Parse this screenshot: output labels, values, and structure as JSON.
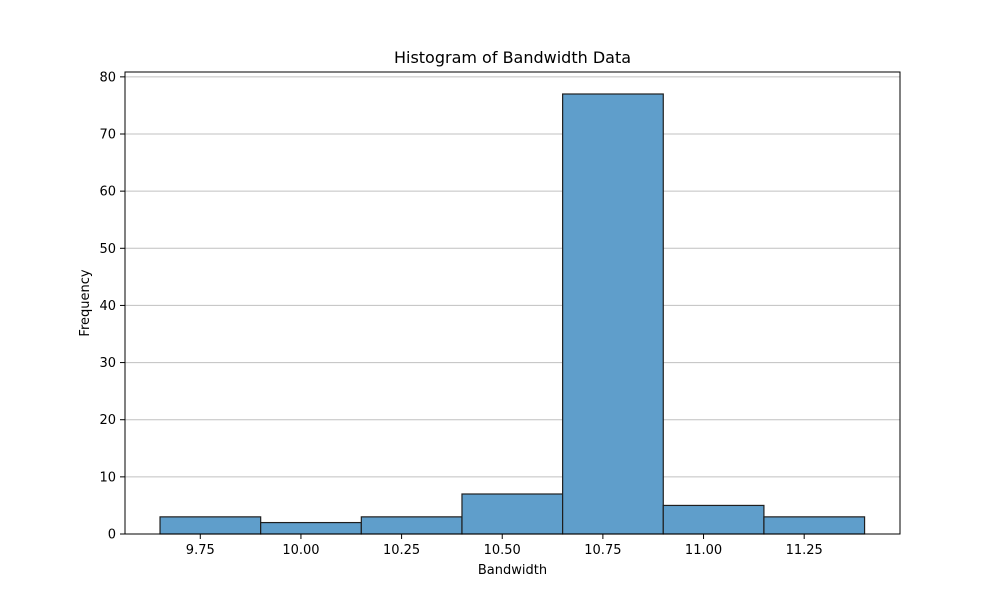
{
  "chart_data": {
    "type": "bar",
    "title": "Histogram of Bandwidth Data",
    "xlabel": "Bandwidth",
    "ylabel": "Frequency",
    "bins": [
      {
        "start": 9.65,
        "end": 9.9,
        "count": 3
      },
      {
        "start": 9.9,
        "end": 10.15,
        "count": 2
      },
      {
        "start": 10.15,
        "end": 10.4,
        "count": 3
      },
      {
        "start": 10.4,
        "end": 10.65,
        "count": 7
      },
      {
        "start": 10.65,
        "end": 10.9,
        "count": 77
      },
      {
        "start": 10.9,
        "end": 11.15,
        "count": 5
      },
      {
        "start": 11.15,
        "end": 11.4,
        "count": 3
      }
    ],
    "xlim": [
      9.563,
      11.488
    ],
    "ylim": [
      0,
      80.85
    ],
    "x_ticks": [
      "9.75",
      "10.00",
      "10.25",
      "10.50",
      "10.75",
      "11.00",
      "11.25"
    ],
    "y_ticks": [
      "0",
      "10",
      "20",
      "30",
      "40",
      "50",
      "60",
      "70",
      "80"
    ],
    "grid": "y",
    "bar_color": "#5f9ecb",
    "edge_color": "#1f1f1f",
    "grid_color": "#c0c0c0"
  }
}
